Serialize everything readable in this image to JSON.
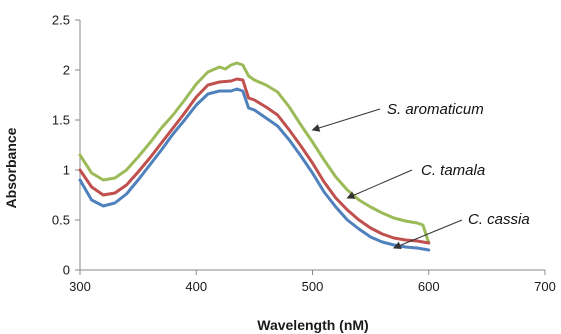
{
  "chart_data": {
    "type": "line",
    "title": "",
    "xlabel": "Wavelength (nM)",
    "ylabel": "Absorbance",
    "xlim": [
      300,
      700
    ],
    "ylim": [
      0,
      2.5
    ],
    "x_ticks": [
      300,
      400,
      500,
      600,
      700
    ],
    "y_ticks": [
      0,
      0.5,
      1,
      1.5,
      2,
      2.5
    ],
    "y_tick_labels": [
      "0",
      "0.5",
      "1",
      "1.5",
      "2",
      "2.5"
    ],
    "grid": false,
    "legend": "none",
    "series": [
      {
        "name": "S. aromaticum",
        "color": "#9BBB59",
        "x": [
          300,
          310,
          320,
          330,
          340,
          350,
          360,
          370,
          380,
          390,
          400,
          410,
          420,
          425,
          430,
          435,
          440,
          445,
          450,
          460,
          470,
          480,
          490,
          500,
          510,
          520,
          530,
          540,
          550,
          560,
          570,
          580,
          590,
          595,
          600
        ],
        "y": [
          1.15,
          0.97,
          0.9,
          0.92,
          1.0,
          1.13,
          1.27,
          1.42,
          1.55,
          1.7,
          1.86,
          1.98,
          2.03,
          2.01,
          2.05,
          2.07,
          2.05,
          1.94,
          1.9,
          1.85,
          1.78,
          1.63,
          1.45,
          1.28,
          1.1,
          0.93,
          0.8,
          0.7,
          0.63,
          0.57,
          0.52,
          0.49,
          0.47,
          0.45,
          0.27
        ]
      },
      {
        "name": "C. tamala",
        "color": "#C0504D",
        "x": [
          300,
          310,
          320,
          330,
          340,
          350,
          360,
          370,
          380,
          390,
          400,
          410,
          420,
          430,
          435,
          440,
          445,
          450,
          460,
          470,
          480,
          490,
          500,
          510,
          520,
          530,
          540,
          550,
          560,
          570,
          580,
          590,
          600
        ],
        "y": [
          1.0,
          0.83,
          0.75,
          0.77,
          0.85,
          0.98,
          1.12,
          1.27,
          1.42,
          1.57,
          1.73,
          1.85,
          1.88,
          1.89,
          1.91,
          1.9,
          1.72,
          1.7,
          1.63,
          1.55,
          1.4,
          1.24,
          1.07,
          0.88,
          0.72,
          0.6,
          0.5,
          0.42,
          0.36,
          0.32,
          0.3,
          0.29,
          0.27
        ]
      },
      {
        "name": "C. cassia",
        "color": "#4F81BD",
        "x": [
          300,
          310,
          320,
          330,
          340,
          350,
          360,
          370,
          380,
          390,
          400,
          410,
          420,
          430,
          435,
          440,
          445,
          450,
          460,
          470,
          480,
          490,
          500,
          510,
          520,
          530,
          540,
          550,
          560,
          570,
          580,
          590,
          600
        ],
        "y": [
          0.9,
          0.7,
          0.64,
          0.67,
          0.76,
          0.9,
          1.05,
          1.2,
          1.36,
          1.5,
          1.65,
          1.76,
          1.79,
          1.79,
          1.81,
          1.79,
          1.62,
          1.6,
          1.52,
          1.44,
          1.3,
          1.14,
          0.97,
          0.78,
          0.63,
          0.5,
          0.41,
          0.33,
          0.28,
          0.25,
          0.23,
          0.22,
          0.2
        ]
      }
    ],
    "annotations": [
      {
        "text": "S. aromaticum",
        "series": "S. aromaticum",
        "arrow_to": [
          500,
          1.4
        ]
      },
      {
        "text": "C. tamala",
        "series": "C. tamala",
        "arrow_to": [
          530,
          0.72
        ]
      },
      {
        "text": "C. cassia",
        "series": "C. cassia",
        "arrow_to": [
          570,
          0.22
        ]
      }
    ]
  }
}
